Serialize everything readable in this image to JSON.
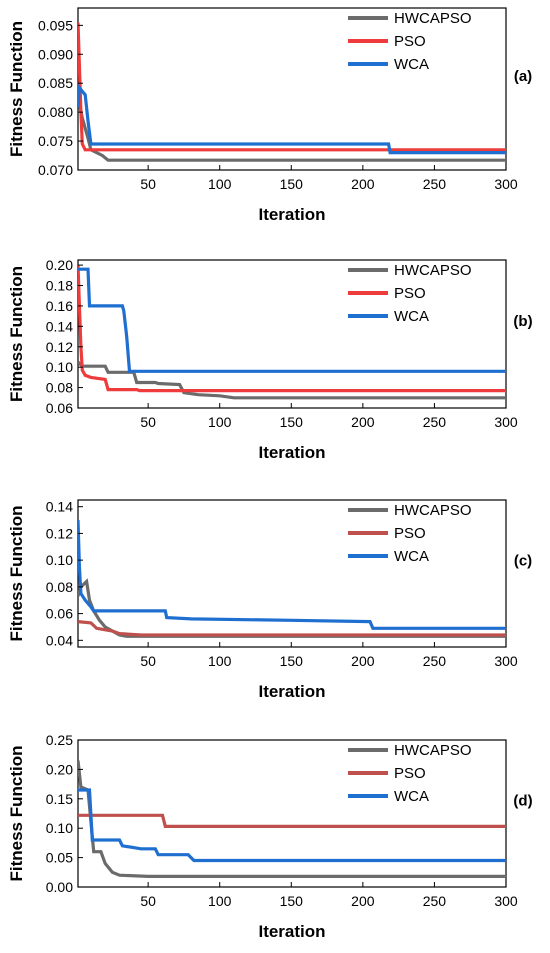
{
  "colors": {
    "HWCAPSO": "#6b6b6b",
    "PSO_ab": "#ee3b3b",
    "PSO_cd": "#c0504d",
    "WCA": "#1f6fd1"
  },
  "chart_data": [
    {
      "type": "line",
      "panel_label": "(a)",
      "xlabel": "Iteration",
      "ylabel": "Fitness Function",
      "xlim": [
        1,
        300
      ],
      "ylim": [
        0.07,
        0.098
      ],
      "xticks": [
        50,
        100,
        150,
        200,
        250,
        300
      ],
      "yticks": [
        0.07,
        0.075,
        0.08,
        0.085,
        0.09,
        0.095
      ],
      "ytick_labels": [
        "0.070",
        "0.075",
        "0.080",
        "0.085",
        "0.090",
        "0.095"
      ],
      "legend_position": "top-right",
      "series": [
        {
          "name": "HWCAPSO",
          "color": "#6b6b6b",
          "points": [
            [
              1,
              0.0825
            ],
            [
              4,
              0.079
            ],
            [
              8,
              0.0755
            ],
            [
              10,
              0.0735
            ],
            [
              18,
              0.0725
            ],
            [
              22,
              0.0717
            ],
            [
              300,
              0.0717
            ]
          ]
        },
        {
          "name": "PSO",
          "color": "#ee3b3b",
          "points": [
            [
              1,
              0.0955
            ],
            [
              2,
              0.088
            ],
            [
              3,
              0.08
            ],
            [
              4,
              0.0745
            ],
            [
              6,
              0.0735
            ],
            [
              300,
              0.0735
            ]
          ]
        },
        {
          "name": "WCA",
          "color": "#1f6fd1",
          "points": [
            [
              1,
              0.0808
            ],
            [
              2,
              0.0842
            ],
            [
              6,
              0.083
            ],
            [
              8,
              0.0785
            ],
            [
              10,
              0.0745
            ],
            [
              218,
              0.0745
            ],
            [
              219,
              0.073
            ],
            [
              300,
              0.073
            ]
          ]
        }
      ]
    },
    {
      "type": "line",
      "panel_label": "(b)",
      "xlabel": "Iteration",
      "ylabel": "Fitness Function",
      "xlim": [
        1,
        300
      ],
      "ylim": [
        0.06,
        0.205
      ],
      "xticks": [
        50,
        100,
        150,
        200,
        250,
        300
      ],
      "yticks": [
        0.06,
        0.08,
        0.1,
        0.12,
        0.14,
        0.16,
        0.18,
        0.2
      ],
      "ytick_labels": [
        "0.06",
        "0.08",
        "0.10",
        "0.12",
        "0.14",
        "0.16",
        "0.18",
        "0.20"
      ],
      "legend_position": "top-right",
      "series": [
        {
          "name": "HWCAPSO",
          "color": "#6b6b6b",
          "points": [
            [
              1,
              0.105
            ],
            [
              4,
              0.101
            ],
            [
              20,
              0.101
            ],
            [
              22,
              0.095
            ],
            [
              40,
              0.095
            ],
            [
              42,
              0.085
            ],
            [
              55,
              0.085
            ],
            [
              57,
              0.084
            ],
            [
              72,
              0.083
            ],
            [
              75,
              0.075
            ],
            [
              85,
              0.073
            ],
            [
              100,
              0.072
            ],
            [
              110,
              0.07
            ],
            [
              300,
              0.07
            ]
          ]
        },
        {
          "name": "PSO",
          "color": "#ee3b3b",
          "points": [
            [
              1,
              0.2
            ],
            [
              2,
              0.16
            ],
            [
              3,
              0.12
            ],
            [
              4,
              0.097
            ],
            [
              6,
              0.092
            ],
            [
              10,
              0.09
            ],
            [
              20,
              0.088
            ],
            [
              22,
              0.078
            ],
            [
              42,
              0.078
            ],
            [
              44,
              0.077
            ],
            [
              300,
              0.077
            ]
          ]
        },
        {
          "name": "WCA",
          "color": "#1f6fd1",
          "points": [
            [
              1,
              0.196
            ],
            [
              8,
              0.196
            ],
            [
              9,
              0.16
            ],
            [
              32,
              0.16
            ],
            [
              33,
              0.155
            ],
            [
              35,
              0.13
            ],
            [
              37,
              0.096
            ],
            [
              300,
              0.096
            ]
          ]
        }
      ]
    },
    {
      "type": "line",
      "panel_label": "(c)",
      "xlabel": "Iteration",
      "ylabel": "Fitness Function",
      "xlim": [
        1,
        300
      ],
      "ylim": [
        0.035,
        0.145
      ],
      "xticks": [
        50,
        100,
        150,
        200,
        250,
        300
      ],
      "yticks": [
        0.04,
        0.06,
        0.08,
        0.1,
        0.12,
        0.14
      ],
      "ytick_labels": [
        "0.04",
        "0.06",
        "0.08",
        "0.10",
        "0.12",
        "0.14"
      ],
      "legend_position": "top-right",
      "series": [
        {
          "name": "HWCAPSO",
          "color": "#6b6b6b",
          "points": [
            [
              1,
              0.073
            ],
            [
              3,
              0.08
            ],
            [
              7,
              0.084
            ],
            [
              9,
              0.07
            ],
            [
              12,
              0.062
            ],
            [
              16,
              0.055
            ],
            [
              20,
              0.05
            ],
            [
              25,
              0.047
            ],
            [
              30,
              0.044
            ],
            [
              35,
              0.043
            ],
            [
              300,
              0.043
            ]
          ]
        },
        {
          "name": "PSO",
          "color": "#c0504d",
          "points": [
            [
              1,
              0.054
            ],
            [
              10,
              0.053
            ],
            [
              14,
              0.049
            ],
            [
              25,
              0.047
            ],
            [
              30,
              0.045
            ],
            [
              45,
              0.044
            ],
            [
              300,
              0.044
            ]
          ]
        },
        {
          "name": "WCA",
          "color": "#1f6fd1",
          "points": [
            [
              1,
              0.13
            ],
            [
              2,
              0.095
            ],
            [
              3,
              0.075
            ],
            [
              6,
              0.07
            ],
            [
              10,
              0.065
            ],
            [
              12,
              0.062
            ],
            [
              62,
              0.062
            ],
            [
              63,
              0.057
            ],
            [
              80,
              0.056
            ],
            [
              150,
              0.055
            ],
            [
              205,
              0.054
            ],
            [
              207,
              0.049
            ],
            [
              300,
              0.049
            ]
          ]
        }
      ]
    },
    {
      "type": "line",
      "panel_label": "(d)",
      "xlabel": "Iteration",
      "ylabel": "Fitness Function",
      "xlim": [
        1,
        300
      ],
      "ylim": [
        0,
        0.25
      ],
      "xticks": [
        50,
        100,
        150,
        200,
        250,
        300
      ],
      "yticks": [
        0,
        0.05,
        0.1,
        0.15,
        0.2,
        0.25
      ],
      "ytick_labels": [
        "0.00",
        "0.05",
        "0.10",
        "0.15",
        "0.20",
        "0.25"
      ],
      "legend_position": "top-right",
      "series": [
        {
          "name": "HWCAPSO",
          "color": "#6b6b6b",
          "points": [
            [
              1,
              0.215
            ],
            [
              3,
              0.17
            ],
            [
              8,
              0.165
            ],
            [
              12,
              0.06
            ],
            [
              17,
              0.06
            ],
            [
              20,
              0.04
            ],
            [
              25,
              0.025
            ],
            [
              30,
              0.02
            ],
            [
              50,
              0.018
            ],
            [
              300,
              0.018
            ]
          ]
        },
        {
          "name": "PSO",
          "color": "#c0504d",
          "points": [
            [
              1,
              0.122
            ],
            [
              60,
              0.122
            ],
            [
              62,
              0.103
            ],
            [
              300,
              0.103
            ]
          ]
        },
        {
          "name": "WCA",
          "color": "#1f6fd1",
          "points": [
            [
              1,
              0.165
            ],
            [
              9,
              0.165
            ],
            [
              11,
              0.08
            ],
            [
              30,
              0.08
            ],
            [
              32,
              0.07
            ],
            [
              45,
              0.065
            ],
            [
              55,
              0.065
            ],
            [
              57,
              0.055
            ],
            [
              78,
              0.055
            ],
            [
              82,
              0.045
            ],
            [
              300,
              0.045
            ]
          ]
        }
      ]
    }
  ]
}
